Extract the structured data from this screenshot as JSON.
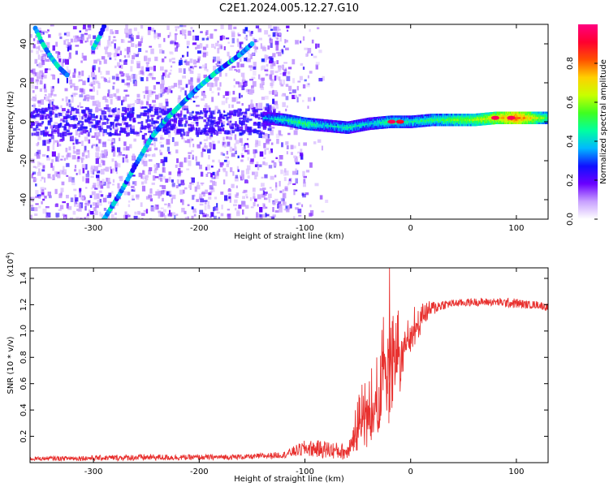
{
  "title": "C2E1.2024.005.12.27.G10",
  "colors": {
    "trace": "#e8312f",
    "heat_low": "#e6d2fb",
    "heat_mid": "#7b2cf0",
    "heat_high": "#3a00c8"
  },
  "chart_data": [
    {
      "type": "heatmap",
      "xlabel": "Height of straight line (km)",
      "ylabel": "Frequency (Hz)",
      "xlim": [
        -360,
        130
      ],
      "ylim": [
        -50,
        50
      ],
      "xticks": [
        -300,
        -200,
        -100,
        0,
        100
      ],
      "yticks": [
        -40,
        -20,
        0,
        20,
        40
      ],
      "colorbar": {
        "label": "Normalized spectral amplitude",
        "range": [
          0.0,
          1.0
        ],
        "ticks": [
          "0.0",
          "0.2",
          "0.4",
          "0.6",
          "0.8"
        ],
        "tick_values": [
          0.0,
          0.2,
          0.4,
          0.6,
          0.8
        ],
        "colors": [
          "#ffffff",
          "#c8a0ff",
          "#6a00ff",
          "#1010ff",
          "#00b8ff",
          "#00ffa0",
          "#40ff20",
          "#c8ff00",
          "#ffd000",
          "#ff5000",
          "#ff0030",
          "#ff0080"
        ]
      },
      "noise_region_x": [
        -360,
        -130
      ],
      "noise_fade_x": [
        -130,
        -80
      ],
      "curves": [
        {
          "name": "rising-trace",
          "x": [
            -290,
            -275,
            -260,
            -245,
            -230,
            -215,
            -200,
            -185,
            -170,
            -160,
            -150
          ],
          "y": [
            -50,
            -37,
            -22,
            -8,
            2,
            10,
            18,
            25,
            31,
            35,
            40
          ]
        },
        {
          "name": "falling-trace",
          "x": [
            -355,
            -348,
            -340,
            -333,
            -325
          ],
          "y": [
            48,
            40,
            33,
            28,
            24
          ]
        },
        {
          "name": "upper-trace",
          "x": [
            -300,
            -294,
            -290
          ],
          "y": [
            38,
            44,
            49
          ]
        }
      ],
      "band": {
        "x": [
          -140,
          -120,
          -100,
          -80,
          -60,
          -40,
          -20,
          0,
          20,
          40,
          60,
          80,
          100,
          130
        ],
        "center": [
          2,
          1,
          -1,
          -2,
          -3,
          -1,
          0,
          0,
          1,
          1,
          1,
          2,
          2,
          2
        ],
        "amplitude": [
          0.35,
          0.45,
          0.5,
          0.4,
          0.45,
          0.4,
          0.5,
          0.45,
          0.5,
          0.55,
          0.6,
          0.7,
          0.85,
          0.5
        ]
      },
      "hotspots": [
        {
          "x": -18,
          "y": 0,
          "amp": 0.95
        },
        {
          "x": -10,
          "y": 0,
          "amp": 0.9
        },
        {
          "x": 80,
          "y": 2,
          "amp": 0.95
        },
        {
          "x": 95,
          "y": 2,
          "amp": 0.95
        }
      ]
    },
    {
      "type": "line",
      "xlabel": "Height of straight line (km)",
      "ylabel": "SNR (10 * v/v)",
      "yscale_label": "(x10",
      "yscale_exponent": "4",
      "yscale_suffix": ")",
      "xlim": [
        -360,
        130
      ],
      "ylim": [
        0,
        1.48
      ],
      "xticks": [
        -300,
        -200,
        -100,
        0,
        100
      ],
      "yticks": [
        "0.2",
        "0.4",
        "0.6",
        "0.8",
        "1.0",
        "1.2",
        "1.4"
      ],
      "ytick_values": [
        0.2,
        0.4,
        0.6,
        0.8,
        1.0,
        1.2,
        1.4
      ],
      "series": [
        {
          "name": "SNR",
          "x": [
            -360,
            -300,
            -250,
            -200,
            -150,
            -120,
            -100,
            -80,
            -60,
            -50,
            -45,
            -40,
            -35,
            -30,
            -25,
            -20,
            -15,
            -10,
            -5,
            0,
            10,
            20,
            30,
            40,
            60,
            80,
            100,
            110,
            120,
            130
          ],
          "y": [
            0.03,
            0.035,
            0.04,
            0.04,
            0.045,
            0.06,
            0.11,
            0.1,
            0.08,
            0.35,
            0.4,
            0.45,
            0.6,
            0.55,
            0.85,
            0.85,
            0.85,
            0.9,
            1.0,
            1.05,
            1.12,
            1.17,
            1.2,
            1.21,
            1.22,
            1.22,
            1.21,
            1.2,
            1.2,
            1.18
          ],
          "noise": [
            0.015,
            0.02,
            0.025,
            0.02,
            0.02,
            0.025,
            0.06,
            0.07,
            0.06,
            0.18,
            0.22,
            0.25,
            0.28,
            0.3,
            0.32,
            0.35,
            0.3,
            0.28,
            0.2,
            0.15,
            0.1,
            0.06,
            0.04,
            0.03,
            0.03,
            0.03,
            0.04,
            0.03,
            0.03,
            0.03
          ]
        }
      ],
      "peak": {
        "x": -20,
        "y": 1.48
      }
    }
  ]
}
